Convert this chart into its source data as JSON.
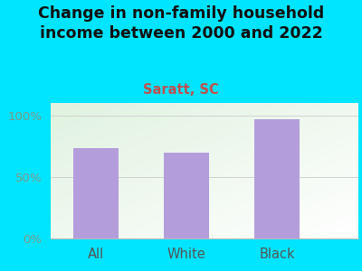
{
  "title": "Change in non-family household\nincome between 2000 and 2022",
  "subtitle": "Saratt, SC",
  "categories": [
    "All",
    "White",
    "Black"
  ],
  "values": [
    73,
    70,
    97
  ],
  "bar_color": "#b39ddb",
  "background_color": "#00e5ff",
  "title_color": "#111111",
  "subtitle_color": "#c0504d",
  "tick_color": "#7a9a8a",
  "xlabel_color": "#555555",
  "ylabel_ticks": [
    0,
    50,
    100
  ],
  "ylabel_labels": [
    "0%",
    "50%",
    "100%"
  ],
  "ylim": [
    0,
    110
  ],
  "title_fontsize": 12.5,
  "subtitle_fontsize": 10.5,
  "tick_fontsize": 9.5,
  "xlabel_fontsize": 10.5,
  "bar_width": 0.5
}
